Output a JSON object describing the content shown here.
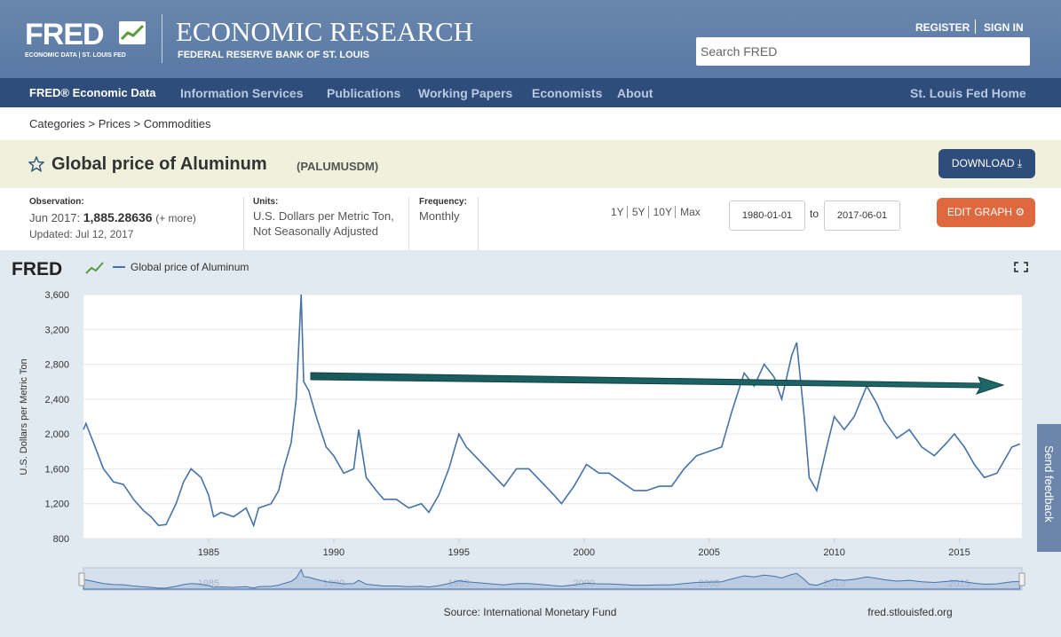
{
  "header": {
    "logo": "FRED",
    "logo_sub": "ECONOMIC DATA | ST. LOUIS FED",
    "title": "ECONOMIC RESEARCH",
    "subtitle": "FEDERAL RESERVE BANK OF ST. LOUIS"
  },
  "account": [
    "REGISTER",
    "SIGN IN"
  ],
  "search_placeholder": "Search FRED",
  "nav": [
    "FRED® Economic Data",
    "Information Services",
    "Publications",
    "Working Papers",
    "Economists",
    "About"
  ],
  "nav_right": "St. Louis Fed Home",
  "breadcrumbs": {
    "items": [
      "Categories",
      "Prices",
      "Commodities"
    ],
    "separator": ">"
  },
  "series_header": {
    "title": "Global price of Aluminum",
    "id": "(PALUMUSDM)",
    "download": "DOWNLOAD"
  },
  "observation": {
    "label": "Observation:",
    "date": "Jun 2017:",
    "value": "1,885.28636",
    "more": "(+ more)",
    "updated": "Updated: Jul 12, 2017"
  },
  "units": {
    "label": "Units:",
    "lines": [
      "U.S. Dollars per Metric Ton,",
      "Not Seasonally Adjusted"
    ]
  },
  "frequency": {
    "label": "Frequency:",
    "value": "Monthly"
  },
  "ranges": [
    "1Y",
    "5Y",
    "10Y",
    "Max"
  ],
  "dates": {
    "from": "1980-01-01",
    "to_label": "to",
    "to": "2017-06-01"
  },
  "edit_graph": "EDIT GRAPH",
  "feedback": "Send feedback",
  "chart_data": {
    "type": "line",
    "logo": "FRED",
    "y_label": "U.S. Dollars per Metric Ton",
    "source": "Source: International Monetary Fund",
    "site": "fred.stlouisfed.org",
    "x": [
      1980.0,
      1980.1,
      1980.4,
      1980.8,
      1981.2,
      1981.6,
      1982.0,
      1982.4,
      1982.7,
      1983.0,
      1983.3,
      1983.7,
      1984.0,
      1984.3,
      1984.7,
      1985.0,
      1985.2,
      1985.5,
      1986.0,
      1986.5,
      1986.8,
      1987.0,
      1987.5,
      1987.8,
      1988.0,
      1988.3,
      1988.5,
      1988.7,
      1988.8,
      1989.0,
      1989.3,
      1989.7,
      1990.0,
      1990.4,
      1990.8,
      1991.0,
      1991.3,
      1991.7,
      1992.0,
      1992.5,
      1993.0,
      1993.5,
      1993.8,
      1994.2,
      1994.6,
      1995.0,
      1995.3,
      1995.8,
      1996.3,
      1996.8,
      1997.3,
      1997.8,
      1998.3,
      1998.8,
      1999.1,
      1999.6,
      2000.1,
      2000.6,
      2001.0,
      2001.5,
      2002.0,
      2002.5,
      2003.0,
      2003.5,
      2004.0,
      2004.5,
      2005.0,
      2005.5,
      2005.9,
      2006.4,
      2006.8,
      2007.2,
      2007.6,
      2007.9,
      2008.3,
      2008.5,
      2008.8,
      2009.0,
      2009.3,
      2009.7,
      2010.0,
      2010.4,
      2010.8,
      2011.3,
      2011.7,
      2012.0,
      2012.5,
      2013.0,
      2013.5,
      2014.0,
      2014.5,
      2014.8,
      2015.2,
      2015.6,
      2016.0,
      2016.5,
      2016.8,
      2017.1,
      2017.42
    ],
    "series": [
      {
        "name": "Global price of Aluminum",
        "color": "#4572a7",
        "values": [
          2050,
          2120,
          1900,
          1600,
          1450,
          1420,
          1250,
          1120,
          1050,
          950,
          960,
          1200,
          1450,
          1600,
          1500,
          1300,
          1050,
          1100,
          1050,
          1150,
          950,
          1150,
          1200,
          1350,
          1600,
          1900,
          2400,
          3600,
          2600,
          2500,
          2200,
          1850,
          1750,
          1550,
          1600,
          2050,
          1500,
          1350,
          1250,
          1250,
          1150,
          1200,
          1100,
          1300,
          1600,
          2000,
          1850,
          1700,
          1550,
          1400,
          1600,
          1600,
          1450,
          1300,
          1200,
          1400,
          1650,
          1550,
          1550,
          1450,
          1350,
          1350,
          1400,
          1400,
          1600,
          1750,
          1800,
          1850,
          2250,
          2700,
          2550,
          2800,
          2650,
          2400,
          2900,
          3050,
          2200,
          1500,
          1350,
          1850,
          2200,
          2050,
          2200,
          2550,
          2350,
          2150,
          1950,
          2050,
          1850,
          1750,
          1900,
          2000,
          1850,
          1650,
          1500,
          1550,
          1700,
          1850,
          1885.28636
        ]
      }
    ],
    "xlim": [
      1980,
      2017.5
    ],
    "ylim": [
      800,
      3600
    ],
    "xticks": [
      1985,
      1990,
      1995,
      2000,
      2005,
      2010,
      2015
    ],
    "yticks": [
      800,
      {
        "value": 1200,
        "label": "1,200"
      },
      {
        "value": 1600,
        "label": "1,600"
      },
      {
        "value": 2000,
        "label": "2,000"
      },
      {
        "value": 2400,
        "label": "2,400"
      },
      {
        "value": 2800,
        "label": "2,800"
      },
      {
        "value": 3200,
        "label": "3,200"
      },
      {
        "value": 3600,
        "label": "3,600"
      }
    ],
    "grid": true
  }
}
